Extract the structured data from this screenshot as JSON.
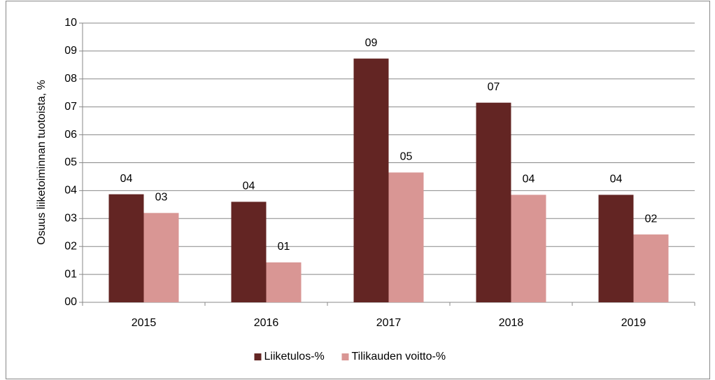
{
  "chart_data": {
    "type": "bar",
    "y_label": "Osuus liiketoiminnan tuotoista, %",
    "categories": [
      "2015",
      "2016",
      "2017",
      "2018",
      "2019"
    ],
    "series": [
      {
        "name": "Liiketulos-%",
        "color": "#632523",
        "values": [
          3.87,
          3.6,
          8.73,
          7.15,
          3.85
        ],
        "value_labels": [
          "04",
          "04",
          "09",
          "07",
          "04"
        ]
      },
      {
        "name": "Tilikauden voitto-%",
        "color": "#d99694",
        "values": [
          3.2,
          1.43,
          4.65,
          3.85,
          2.43
        ],
        "value_labels": [
          "03",
          "01",
          "05",
          "04",
          "02"
        ]
      }
    ],
    "ylim": [
      0,
      10
    ],
    "yticks": [
      {
        "value": 0,
        "label": "00"
      },
      {
        "value": 1,
        "label": "01"
      },
      {
        "value": 2,
        "label": "02"
      },
      {
        "value": 3,
        "label": "03"
      },
      {
        "value": 4,
        "label": "04"
      },
      {
        "value": 5,
        "label": "05"
      },
      {
        "value": 6,
        "label": "06"
      },
      {
        "value": 7,
        "label": "07"
      },
      {
        "value": 8,
        "label": "08"
      },
      {
        "value": 9,
        "label": "09"
      },
      10
    ],
    "grid": true,
    "legend": "bottom"
  }
}
